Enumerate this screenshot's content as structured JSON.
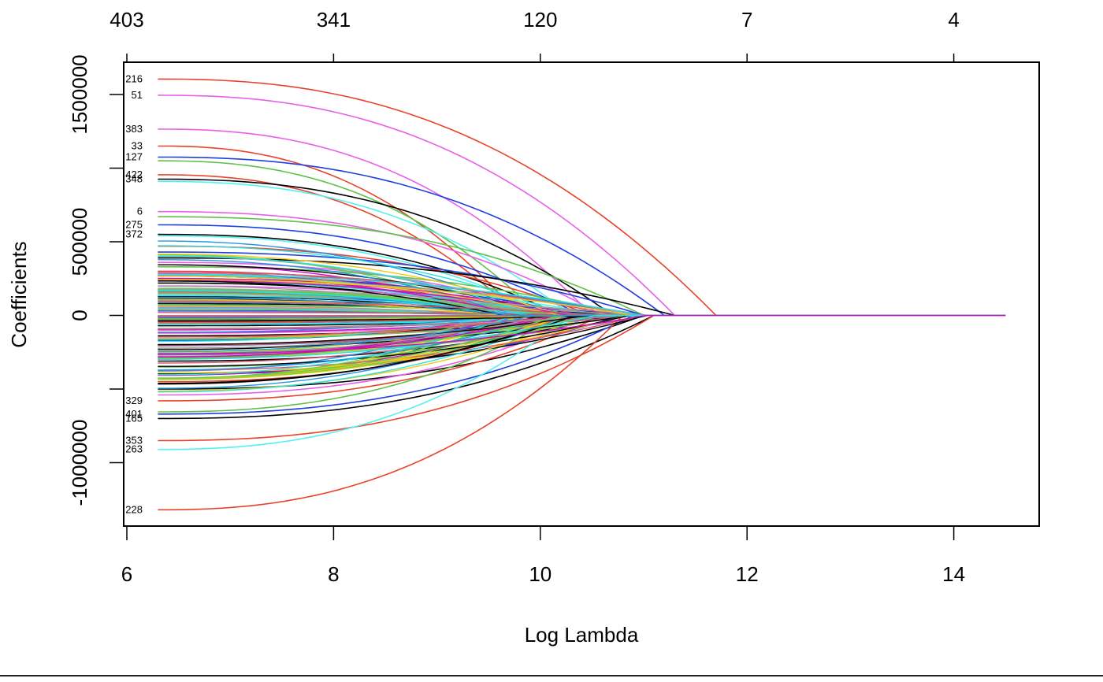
{
  "chart_data": {
    "type": "line",
    "title": "",
    "xlabel": "Log Lambda",
    "ylabel": "Coefficients",
    "xlim": [
      6,
      14.5
    ],
    "ylim": [
      -1400000,
      1730000
    ],
    "x_ticks": [
      6,
      8,
      10,
      12,
      14
    ],
    "x_tick_labels": [
      "6",
      "8",
      "10",
      "12",
      "14"
    ],
    "y_ticks": [
      -1000000,
      0,
      500000,
      1500000
    ],
    "y_tick_labels": [
      "-1000000",
      "0",
      "500000",
      "1500000"
    ],
    "y_minor_ticks": [
      -500000,
      1000000
    ],
    "top_axis_ticks": [
      6,
      8,
      10,
      12,
      14
    ],
    "top_axis_labels": [
      "403",
      "341",
      "120",
      "7",
      "4"
    ],
    "grid": false,
    "x_start": 6.3,
    "x_end": 14.5,
    "palette": [
      "#000000",
      "#DF536B",
      "#61D04F",
      "#2297E6",
      "#28E2E5",
      "#CD0BBC",
      "#F5C710",
      "#9E9E9E"
    ],
    "series": [
      {
        "label": "216",
        "color": "#e8432a",
        "start": 1605000,
        "zero_at": 11.7
      },
      {
        "label": "51",
        "color": "#e860e8",
        "start": 1495000,
        "zero_at": 11.3
      },
      {
        "label": "383",
        "color": "#e860e8",
        "start": 1265000,
        "zero_at": 10.5
      },
      {
        "label": "33",
        "color": "#e8432a",
        "start": 1150000,
        "zero_at": 9.8
      },
      {
        "label": "127",
        "color": "#1f3fe0",
        "start": 1075000,
        "zero_at": 11.2
      },
      {
        "label": "",
        "color": "#5ec24a",
        "start": 1050000,
        "zero_at": 10.0
      },
      {
        "label": "422",
        "color": "#e8432a",
        "start": 955000,
        "zero_at": 9.8
      },
      {
        "label": "348",
        "color": "#000000",
        "start": 925000,
        "zero_at": 10.7
      },
      {
        "label": "",
        "color": "#55f0f0",
        "start": 910000,
        "zero_at": 10.3
      },
      {
        "label": "6",
        "color": "#e860e8",
        "start": 705000,
        "zero_at": 10.6
      },
      {
        "label": "",
        "color": "#5ec24a",
        "start": 670000,
        "zero_at": 11.0
      },
      {
        "label": "275",
        "color": "#1f3fe0",
        "start": 615000,
        "zero_at": 10.4
      },
      {
        "label": "372",
        "color": "#000000",
        "start": 550000,
        "zero_at": 10.2
      },
      {
        "label": "",
        "color": "#55f0f0",
        "start": 540000,
        "zero_at": 10.1
      },
      {
        "label": "",
        "color": "#e8432a",
        "start": 470000,
        "zero_at": 10.5
      },
      {
        "label": "",
        "color": "#1f3fe0",
        "start": 430000,
        "zero_at": 11.0
      },
      {
        "label": "",
        "color": "#000000",
        "start": 390000,
        "zero_at": 11.3
      },
      {
        "label": "",
        "color": "#e860e8",
        "start": 360000,
        "zero_at": 10.2
      },
      {
        "label": "",
        "color": "#5ec24a",
        "start": 330000,
        "zero_at": 10.8
      },
      {
        "label": "",
        "color": "#e8432a",
        "start": 300000,
        "zero_at": 10.0
      },
      {
        "label": "",
        "color": "#1f3fe0",
        "start": 270000,
        "zero_at": 10.4
      },
      {
        "label": "",
        "color": "#55f0f0",
        "start": 250000,
        "zero_at": 10.6
      },
      {
        "label": "",
        "color": "#000000",
        "start": 220000,
        "zero_at": 9.9
      },
      {
        "label": "",
        "color": "#e860e8",
        "start": 200000,
        "zero_at": 10.3
      },
      {
        "label": "",
        "color": "#5ec24a",
        "start": 175000,
        "zero_at": 10.7
      },
      {
        "label": "",
        "color": "#e8432a",
        "start": 150000,
        "zero_at": 10.1
      },
      {
        "label": "",
        "color": "#1f3fe0",
        "start": 125000,
        "zero_at": 10.9
      },
      {
        "label": "",
        "color": "#55f0f0",
        "start": 100000,
        "zero_at": 10.0
      },
      {
        "label": "",
        "color": "#000000",
        "start": 80000,
        "zero_at": 10.5
      },
      {
        "label": "",
        "color": "#e860e8",
        "start": 55000,
        "zero_at": 9.8
      },
      {
        "label": "",
        "color": "#5ec24a",
        "start": 30000,
        "zero_at": 10.2
      },
      {
        "label": "",
        "color": "#1f3fe0",
        "start": -20000,
        "zero_at": 10.1
      },
      {
        "label": "",
        "color": "#e8432a",
        "start": -45000,
        "zero_at": 10.4
      },
      {
        "label": "",
        "color": "#000000",
        "start": -70000,
        "zero_at": 10.8
      },
      {
        "label": "",
        "color": "#55f0f0",
        "start": -95000,
        "zero_at": 10.0
      },
      {
        "label": "",
        "color": "#e860e8",
        "start": -120000,
        "zero_at": 10.6
      },
      {
        "label": "",
        "color": "#5ec24a",
        "start": -145000,
        "zero_at": 10.3
      },
      {
        "label": "",
        "color": "#1f3fe0",
        "start": -170000,
        "zero_at": 9.9
      },
      {
        "label": "",
        "color": "#000000",
        "start": -200000,
        "zero_at": 10.9
      },
      {
        "label": "",
        "color": "#e8432a",
        "start": -225000,
        "zero_at": 10.2
      },
      {
        "label": "",
        "color": "#55f0f0",
        "start": -250000,
        "zero_at": 10.5
      },
      {
        "label": "",
        "color": "#e860e8",
        "start": -280000,
        "zero_at": 10.0
      },
      {
        "label": "",
        "color": "#000000",
        "start": -310000,
        "zero_at": 10.7
      },
      {
        "label": "",
        "color": "#5ec24a",
        "start": -350000,
        "zero_at": 10.4
      },
      {
        "label": "",
        "color": "#1f3fe0",
        "start": -400000,
        "zero_at": 10.8
      },
      {
        "label": "",
        "color": "#e8432a",
        "start": -450000,
        "zero_at": 10.3
      },
      {
        "label": "",
        "color": "#000000",
        "start": -500000,
        "zero_at": 11.0
      },
      {
        "label": "",
        "color": "#e860e8",
        "start": -540000,
        "zero_at": 10.5
      },
      {
        "label": "329",
        "color": "#e8432a",
        "start": -580000,
        "zero_at": 10.6
      },
      {
        "label": "",
        "color": "#5ec24a",
        "start": -655000,
        "zero_at": 10.2
      },
      {
        "label": "401",
        "color": "#1f3fe0",
        "start": -670000,
        "zero_at": 10.9
      },
      {
        "label": "165",
        "color": "#000000",
        "start": -700000,
        "zero_at": 11.1
      },
      {
        "label": "353",
        "color": "#e8432a",
        "start": -850000,
        "zero_at": 11.1
      },
      {
        "label": "263",
        "color": "#55f0f0",
        "start": -910000,
        "zero_at": 10.3
      },
      {
        "label": "228",
        "color": "#e8432a",
        "start": -1320000,
        "zero_at": 10.8
      }
    ]
  }
}
